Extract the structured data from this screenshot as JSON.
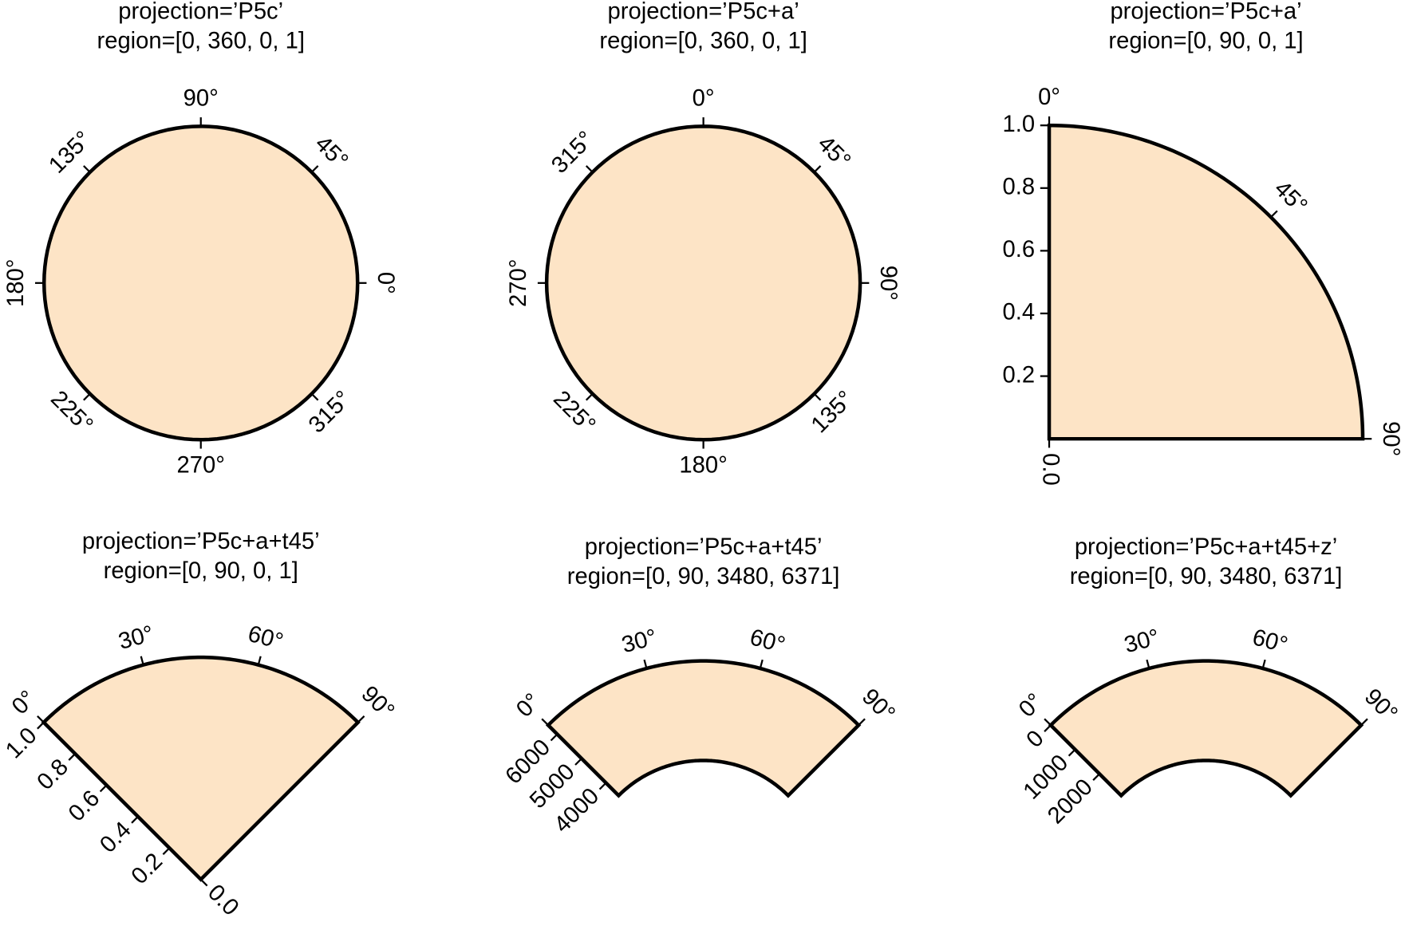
{
  "chart_data": [
    {
      "type": "polar",
      "title": "projection=’P5c’",
      "subtitle": "region=[0, 360, 0, 1]",
      "xlim": [
        0,
        360
      ],
      "ylim": [
        0,
        1
      ],
      "clockwise": false,
      "color": "#fde4c6",
      "xticks": [
        {
          "value": 0,
          "label": "0°"
        },
        {
          "value": 45,
          "label": "45°"
        },
        {
          "value": 90,
          "label": "90°"
        },
        {
          "value": 135,
          "label": "135°"
        },
        {
          "value": 180,
          "label": "180°"
        },
        {
          "value": 225,
          "label": "225°"
        },
        {
          "value": 270,
          "label": "270°"
        },
        {
          "value": 315,
          "label": "315°"
        }
      ]
    },
    {
      "type": "polar",
      "title": "projection=’P5c+a’",
      "subtitle": "region=[0, 360, 0, 1]",
      "xlim": [
        0,
        360
      ],
      "ylim": [
        0,
        1
      ],
      "clockwise": true,
      "color": "#fde4c6",
      "xticks": [
        {
          "value": 0,
          "label": "0°"
        },
        {
          "value": 45,
          "label": "45°"
        },
        {
          "value": 90,
          "label": "90°"
        },
        {
          "value": 135,
          "label": "135°"
        },
        {
          "value": 180,
          "label": "180°"
        },
        {
          "value": 225,
          "label": "225°"
        },
        {
          "value": 270,
          "label": "270°"
        },
        {
          "value": 315,
          "label": "315°"
        }
      ]
    },
    {
      "type": "polar",
      "title": "projection=’P5c+a’",
      "subtitle": "region=[0, 90, 0, 1]",
      "xlim": [
        0,
        90
      ],
      "ylim": [
        0,
        1
      ],
      "clockwise": true,
      "color": "#fde4c6",
      "xticks": [
        {
          "value": 0,
          "label": "0°"
        },
        {
          "value": 45,
          "label": "45°"
        },
        {
          "value": 90,
          "label": "90°"
        }
      ],
      "yticks": [
        {
          "value": 0,
          "label": "0.0"
        },
        0.2,
        0.4,
        0.6,
        0.8,
        {
          "value": 1,
          "label": "1.0"
        }
      ]
    },
    {
      "type": "polar",
      "title": "projection=’P5c+a+t45’",
      "subtitle": "region=[0, 90, 0, 1]",
      "xlim": [
        0,
        90
      ],
      "ylim": [
        0,
        1
      ],
      "clockwise": true,
      "rotation": 45,
      "color": "#fde4c6",
      "xticks": [
        {
          "value": 0,
          "label": "0°"
        },
        {
          "value": 30,
          "label": "30°"
        },
        {
          "value": 60,
          "label": "60°"
        },
        {
          "value": 90,
          "label": "90°"
        }
      ],
      "yticks": [
        {
          "value": 0,
          "label": "0.0"
        },
        0.2,
        0.4,
        0.6,
        0.8,
        {
          "value": 1,
          "label": "1.0"
        }
      ]
    },
    {
      "type": "polar",
      "title": "projection=’P5c+a+t45’",
      "subtitle": "region=[0, 90, 3480, 6371]",
      "xlim": [
        0,
        90
      ],
      "ylim": [
        3480,
        6371
      ],
      "clockwise": true,
      "rotation": 45,
      "color": "#fde4c6",
      "xticks": [
        {
          "value": 0,
          "label": "0°"
        },
        {
          "value": 30,
          "label": "30°"
        },
        {
          "value": 60,
          "label": "60°"
        },
        {
          "value": 90,
          "label": "90°"
        }
      ],
      "yticks": [
        4000,
        5000,
        6000
      ]
    },
    {
      "type": "polar",
      "title": "projection=’P5c+a+t45+z’",
      "subtitle": "region=[0, 90, 3480, 6371]",
      "xlim": [
        0,
        90
      ],
      "ylim": [
        3480,
        6371
      ],
      "clockwise": true,
      "rotation": 45,
      "depth": true,
      "color": "#fde4c6",
      "xticks": [
        {
          "value": 0,
          "label": "0°"
        },
        {
          "value": 30,
          "label": "30°"
        },
        {
          "value": 60,
          "label": "60°"
        },
        {
          "value": 90,
          "label": "90°"
        }
      ],
      "yticks": [
        0,
        1000,
        2000
      ]
    }
  ]
}
